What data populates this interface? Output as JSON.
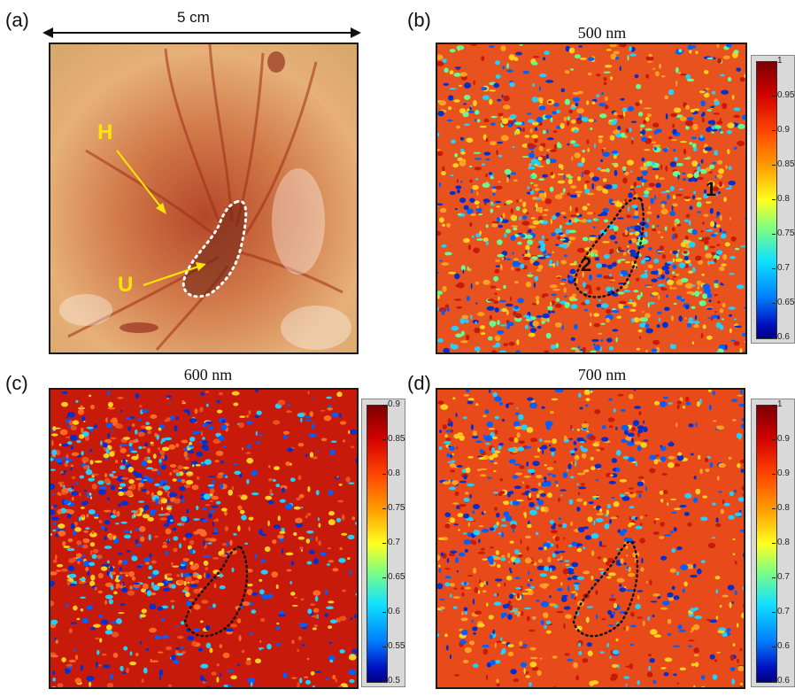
{
  "panels": {
    "a": {
      "letter": "(a)",
      "scale_label": "5 cm",
      "label_H": "H",
      "label_U": "U"
    },
    "b": {
      "letter": "(b)",
      "title": "500 nm",
      "label_1": "1",
      "label_2": "2",
      "colorbar": [
        "1",
        "0.95",
        "0.9",
        "0.85",
        "0.8",
        "0.75",
        "0.7",
        "0.65",
        "0.6"
      ]
    },
    "c": {
      "letter": "(c)",
      "title": "600 nm",
      "colorbar": [
        "0.9",
        "0.85",
        "0.8",
        "0.75",
        "0.7",
        "0.65",
        "0.6",
        "0.55",
        "0.5"
      ]
    },
    "d": {
      "letter": "(d)",
      "title": "700 nm",
      "colorbar": [
        "1",
        "0.9",
        "0.9",
        "0.8",
        "0.8",
        "0.7",
        "0.7",
        "0.6",
        "0.6"
      ]
    }
  },
  "colors": {
    "arrow_yellow": "#ffe600",
    "dotted_outline": "#ffffff",
    "map_red": "#e8401a"
  }
}
